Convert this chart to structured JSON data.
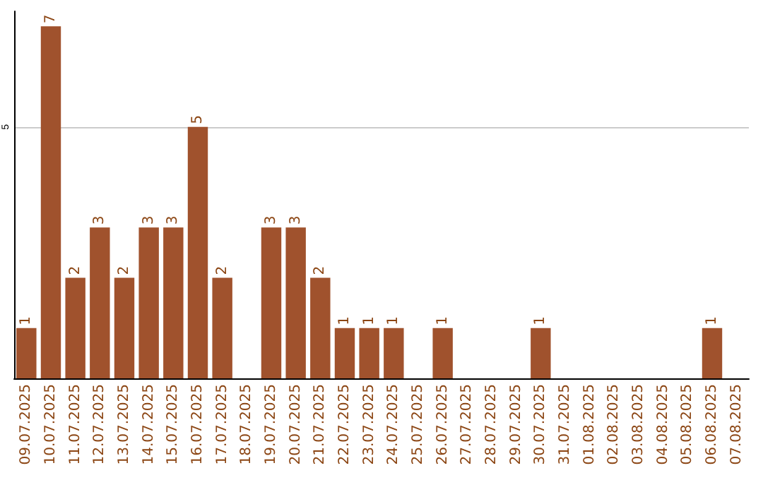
{
  "chart_data": {
    "type": "bar",
    "categories": [
      "09.07.2025",
      "10.07.2025",
      "11.07.2025",
      "12.07.2025",
      "13.07.2025",
      "14.07.2025",
      "15.07.2025",
      "16.07.2025",
      "17.07.2025",
      "18.07.2025",
      "19.07.2025",
      "20.07.2025",
      "21.07.2025",
      "22.07.2025",
      "23.07.2025",
      "24.07.2025",
      "25.07.2025",
      "26.07.2025",
      "27.07.2025",
      "28.07.2025",
      "29.07.2025",
      "30.07.2025",
      "31.07.2025",
      "01.08.2025",
      "02.08.2025",
      "03.08.2025",
      "04.08.2025",
      "05.08.2025",
      "06.08.2025",
      "07.08.2025"
    ],
    "values": [
      1,
      7,
      2,
      3,
      2,
      3,
      3,
      5,
      2,
      0,
      3,
      3,
      2,
      1,
      1,
      1,
      0,
      1,
      0,
      0,
      0,
      1,
      0,
      0,
      0,
      0,
      0,
      0,
      1,
      0
    ],
    "value_labels": [
      "1",
      "7",
      "2",
      "3",
      "2",
      "3",
      "3",
      "5",
      "2",
      null,
      "3",
      "3",
      "2",
      "1",
      "1",
      "1",
      null,
      "1",
      null,
      null,
      null,
      "1",
      null,
      null,
      null,
      null,
      null,
      null,
      "1",
      null
    ],
    "color": "#a0522d",
    "ylim": [
      0,
      7.3
    ],
    "yticks": [
      5
    ],
    "grid": "y"
  }
}
